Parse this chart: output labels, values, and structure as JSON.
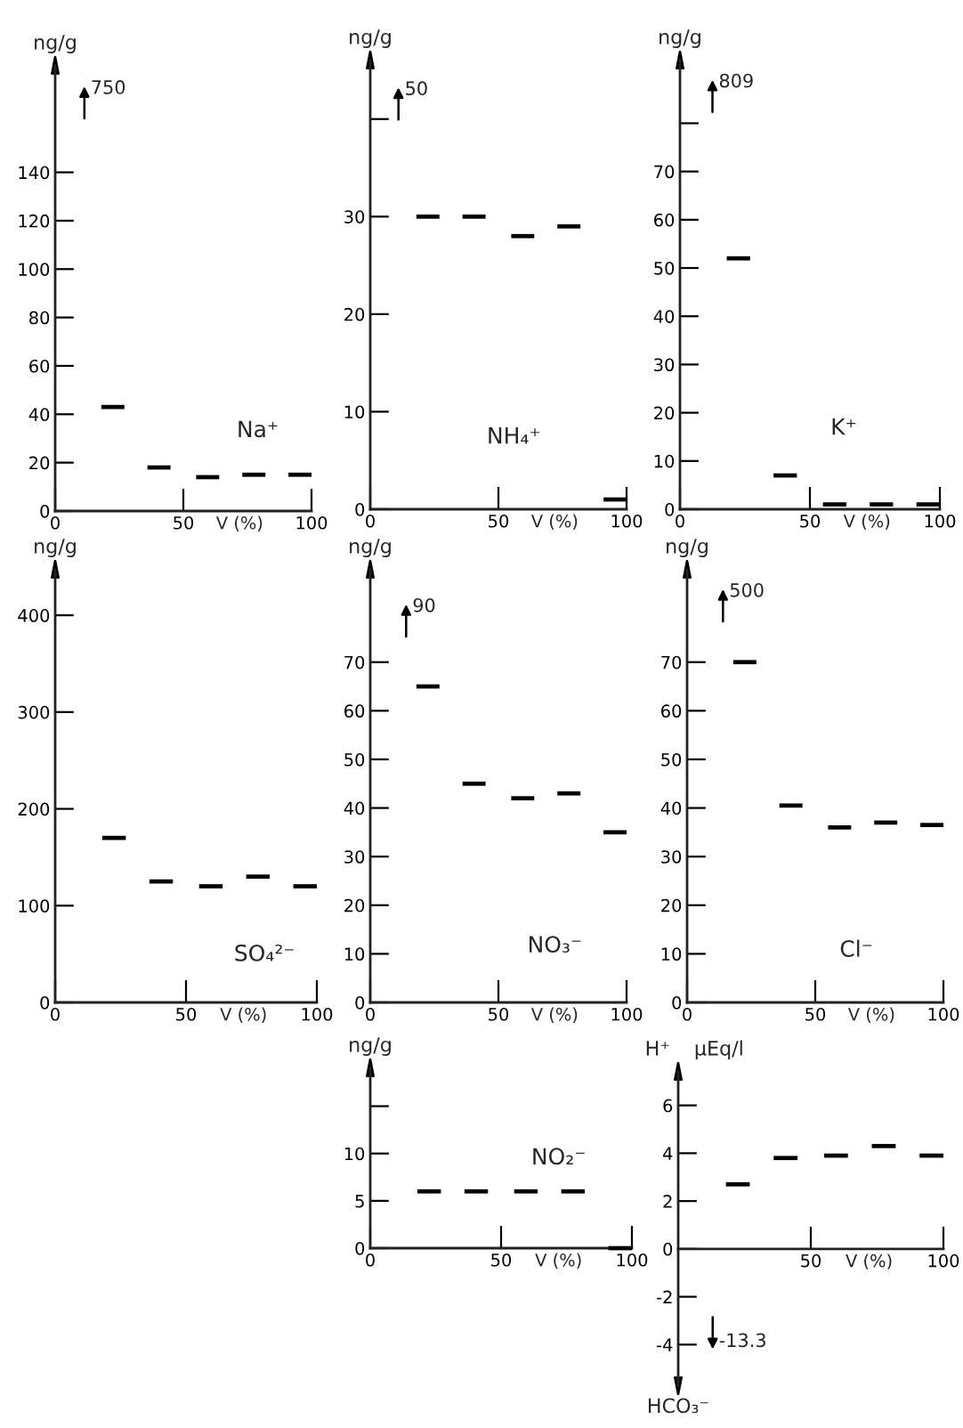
{
  "chart_data": [
    {
      "type": "line",
      "title": "Na⁺",
      "ylabel": "ng/g",
      "xlabel": "V (%)",
      "xlim": [
        0,
        100
      ],
      "xticks": [
        0,
        50,
        100
      ],
      "ylim": [
        0,
        184
      ],
      "yticks": [
        0,
        20,
        40,
        60,
        80,
        100,
        120,
        140
      ],
      "series": [
        {
          "color": "#000000",
          "x": [
            18,
            27
          ],
          "values": [
            43,
            43
          ]
        },
        {
          "color": "#000000",
          "x": [
            36,
            45
          ],
          "values": [
            18,
            18
          ]
        },
        {
          "color": "#000000",
          "x": [
            55,
            64
          ],
          "values": [
            14,
            14
          ]
        },
        {
          "color": "#000000",
          "x": [
            73,
            82
          ],
          "values": [
            15,
            15
          ]
        },
        {
          "color": "#000000",
          "x": [
            91,
            100
          ],
          "values": [
            15,
            15
          ]
        }
      ],
      "annotations": [
        "750"
      ]
    },
    {
      "type": "line",
      "title": "NH₄⁺",
      "ylabel": "ng/g",
      "xlabel": "V (%)",
      "xlim": [
        0,
        100
      ],
      "xticks": [
        0,
        50,
        100
      ],
      "ylim": [
        0,
        46
      ],
      "yticks": [
        0,
        10,
        20,
        30,
        {
          "value": 40,
          "label": null
        }
      ],
      "series": [
        {
          "color": "#000000",
          "x": [
            18,
            27
          ],
          "values": [
            30,
            30
          ]
        },
        {
          "color": "#000000",
          "x": [
            36,
            45
          ],
          "values": [
            30,
            30
          ]
        },
        {
          "color": "#000000",
          "x": [
            55,
            64
          ],
          "values": [
            28,
            28
          ]
        },
        {
          "color": "#000000",
          "x": [
            73,
            82
          ],
          "values": [
            29,
            29
          ]
        },
        {
          "color": "#000000",
          "x": [
            91,
            100
          ],
          "values": [
            1,
            1
          ]
        }
      ],
      "annotations": [
        "50"
      ]
    },
    {
      "type": "line",
      "title": "K⁺",
      "ylabel": "ng/g",
      "xlabel": "V (%)",
      "xlim": [
        0,
        100
      ],
      "xticks": [
        0,
        50,
        100
      ],
      "ylim": [
        0,
        93
      ],
      "yticks": [
        0,
        10,
        20,
        30,
        40,
        50,
        60,
        70,
        {
          "value": 80,
          "label": null
        }
      ],
      "series": [
        {
          "color": "#000000",
          "x": [
            18,
            27
          ],
          "values": [
            52,
            52
          ]
        },
        {
          "color": "#000000",
          "x": [
            36,
            45
          ],
          "values": [
            7,
            7
          ]
        },
        {
          "color": "#000000",
          "x": [
            55,
            64
          ],
          "values": [
            1,
            1
          ]
        },
        {
          "color": "#000000",
          "x": [
            73,
            82
          ],
          "values": [
            1,
            1
          ]
        },
        {
          "color": "#000000",
          "x": [
            91,
            100
          ],
          "values": [
            1,
            1
          ]
        }
      ],
      "annotations": [
        "809"
      ]
    },
    {
      "type": "line",
      "title": "SO₄²⁻",
      "ylabel": "ng/g",
      "xlabel": "V (%)",
      "xlim": [
        0,
        100
      ],
      "xticks": [
        0,
        50,
        100
      ],
      "ylim": [
        0,
        447
      ],
      "yticks": [
        0,
        100,
        200,
        300,
        400
      ],
      "series": [
        {
          "color": "#000000",
          "x": [
            18,
            27
          ],
          "values": [
            170,
            170
          ]
        },
        {
          "color": "#000000",
          "x": [
            36,
            45
          ],
          "values": [
            125,
            125
          ]
        },
        {
          "color": "#000000",
          "x": [
            55,
            64
          ],
          "values": [
            120,
            120
          ]
        },
        {
          "color": "#000000",
          "x": [
            73,
            82
          ],
          "values": [
            130,
            130
          ]
        },
        {
          "color": "#000000",
          "x": [
            91,
            100
          ],
          "values": [
            120,
            120
          ]
        }
      ]
    },
    {
      "type": "line",
      "title": "NO₃⁻",
      "ylabel": "ng/g",
      "xlabel": "V (%)",
      "xlim": [
        0,
        100
      ],
      "xticks": [
        0,
        50,
        100
      ],
      "ylim": [
        0,
        89
      ],
      "yticks": [
        0,
        10,
        20,
        30,
        40,
        50,
        60,
        70
      ],
      "series": [
        {
          "color": "#000000",
          "x": [
            18,
            27
          ],
          "values": [
            65,
            65
          ]
        },
        {
          "color": "#000000",
          "x": [
            36,
            45
          ],
          "values": [
            45,
            45
          ]
        },
        {
          "color": "#000000",
          "x": [
            55,
            64
          ],
          "values": [
            42,
            42
          ]
        },
        {
          "color": "#000000",
          "x": [
            73,
            82
          ],
          "values": [
            43,
            43
          ]
        },
        {
          "color": "#000000",
          "x": [
            91,
            100
          ],
          "values": [
            35,
            35
          ]
        }
      ],
      "annotations": [
        "90"
      ]
    },
    {
      "type": "line",
      "title": "Cl⁻",
      "ylabel": "ng/g",
      "xlabel": "V (%)",
      "xlim": [
        0,
        100
      ],
      "xticks": [
        0,
        50,
        100
      ],
      "ylim": [
        0,
        89
      ],
      "yticks": [
        0,
        10,
        20,
        30,
        40,
        50,
        60,
        70
      ],
      "series": [
        {
          "color": "#000000",
          "x": [
            18,
            27
          ],
          "values": [
            70,
            70
          ]
        },
        {
          "color": "#000000",
          "x": [
            36,
            45
          ],
          "values": [
            40.5,
            40.5
          ]
        },
        {
          "color": "#000000",
          "x": [
            55,
            64
          ],
          "values": [
            36,
            36
          ]
        },
        {
          "color": "#000000",
          "x": [
            73,
            82
          ],
          "values": [
            37,
            37
          ]
        },
        {
          "color": "#000000",
          "x": [
            91,
            100
          ],
          "values": [
            36.5,
            36.5
          ]
        }
      ],
      "annotations": [
        "500"
      ]
    },
    {
      "type": "line",
      "title": "NO₂⁻",
      "ylabel": "ng/g",
      "xlabel": "V (%)",
      "xlim": [
        0,
        100
      ],
      "xticks": [
        0,
        50,
        100
      ],
      "ylim": [
        0,
        19
      ],
      "yticks": [
        0,
        5,
        10,
        {
          "value": 15,
          "label": null
        }
      ],
      "series": [
        {
          "color": "#000000",
          "x": [
            18,
            27
          ],
          "values": [
            6,
            6
          ]
        },
        {
          "color": "#000000",
          "x": [
            36,
            45
          ],
          "values": [
            6,
            6
          ]
        },
        {
          "color": "#000000",
          "x": [
            55,
            64
          ],
          "values": [
            6,
            6
          ]
        },
        {
          "color": "#000000",
          "x": [
            73,
            82
          ],
          "values": [
            6,
            6
          ]
        },
        {
          "color": "#000000",
          "x": [
            91,
            100
          ],
          "values": [
            0,
            0
          ]
        }
      ]
    },
    {
      "type": "line",
      "title": "H⁺",
      "ylabel": "µEq/l",
      "xlabel": "V (%)",
      "xlim": [
        0,
        100
      ],
      "xticks": [
        50,
        100
      ],
      "ylim": [
        -5.7,
        7.4
      ],
      "yticks": [
        -4,
        -2,
        0,
        2,
        4,
        6
      ],
      "series": [
        {
          "color": "#000000",
          "x": [
            18,
            27
          ],
          "values": [
            2.7,
            2.7
          ]
        },
        {
          "color": "#000000",
          "x": [
            36,
            45
          ],
          "values": [
            3.8,
            3.8
          ]
        },
        {
          "color": "#000000",
          "x": [
            55,
            64
          ],
          "values": [
            3.9,
            3.9
          ]
        },
        {
          "color": "#000000",
          "x": [
            73,
            82
          ],
          "values": [
            4.3,
            4.3
          ]
        },
        {
          "color": "#000000",
          "x": [
            91,
            100
          ],
          "values": [
            3.9,
            3.9
          ]
        }
      ],
      "annotations": [
        "-13.3",
        "HCO₃⁻"
      ]
    }
  ]
}
